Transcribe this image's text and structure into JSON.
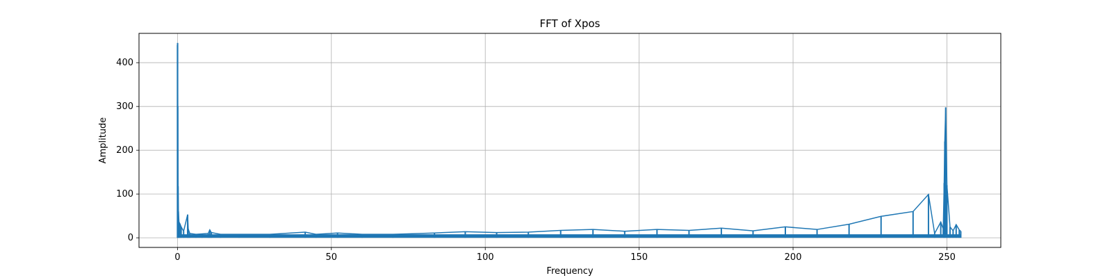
{
  "chart_data": {
    "type": "line",
    "title": "FFT of Xpos",
    "xlabel": "Frequency",
    "ylabel": "Amplitude",
    "xlim": [
      -12.5,
      267.5
    ],
    "ylim": [
      -22,
      467
    ],
    "grid": true,
    "x_ticks": [
      0,
      50,
      100,
      150,
      200,
      250
    ],
    "y_ticks": [
      0,
      100,
      200,
      300,
      400
    ],
    "line_color": "#1f77b4",
    "series": [
      {
        "x": [
          0.0,
          0.05,
          0.1,
          0.2,
          0.3,
          0.5,
          0.8,
          1.2,
          2,
          3.3,
          3.5,
          4,
          6,
          8,
          10,
          10.5,
          11,
          14,
          20,
          30,
          41.5,
          45,
          52,
          60,
          70,
          83.5,
          93.5,
          103.7,
          114,
          124.5,
          135,
          145.3,
          155.8,
          166.2,
          176.7,
          187,
          197.5,
          207.8,
          218.2,
          228.6,
          239,
          244,
          246,
          248,
          248.8,
          249.1,
          249.3,
          249.6,
          250,
          251,
          252,
          253,
          254,
          254.5
        ],
        "y": [
          440,
          445,
          300,
          118,
          60,
          36,
          32,
          25,
          15,
          53,
          20,
          10,
          8,
          9,
          10,
          18,
          12,
          8,
          8,
          8,
          13,
          8,
          11,
          8,
          8,
          11,
          14,
          12,
          13,
          17,
          19,
          15,
          19,
          17,
          22,
          16,
          25,
          19,
          31,
          49,
          60,
          99,
          10,
          36,
          20,
          125,
          220,
          298,
          120,
          25,
          16,
          30,
          18,
          15
        ]
      }
    ]
  }
}
